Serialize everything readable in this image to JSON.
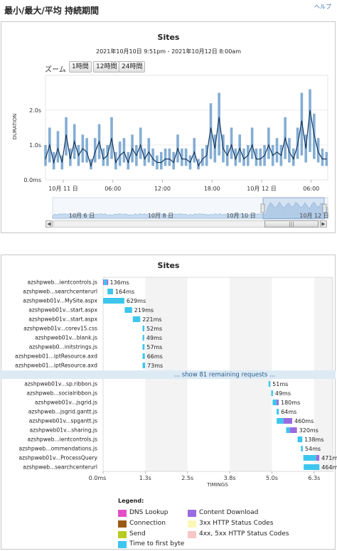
{
  "header": {
    "title": "最小/最大/平均 持続期間",
    "help": "ヘルプ"
  },
  "timeline": {
    "title": "Sites",
    "date_range": "2021年10月10日 9:51pm - 2021年10月12日 8:00am",
    "zoom_label": "ズーム",
    "zoom_buttons": [
      "1時間",
      "12時間",
      "24時間"
    ],
    "y_axis_label": "DURATION",
    "navigator_labels": [
      "10月 6 日",
      "10月 8 日",
      "10月 10 日",
      "10月 12 日"
    ],
    "scrollbar_grip": "|||",
    "colors": {
      "line": "#16385e",
      "bar": "#6f9fcc",
      "grid": "#e4e4e4"
    },
    "chart_data": {
      "type": "line",
      "ylabel": "DURATION",
      "y_ticks": [
        "0.0ms",
        "1.0s",
        "2.0s"
      ],
      "ylim": [
        0,
        3.0
      ],
      "x_ticks": [
        {
          "t": 2.15,
          "label": "10月 11 日"
        },
        {
          "t": 8.15,
          "label": "06:00"
        },
        {
          "t": 14.15,
          "label": "12:00"
        },
        {
          "t": 20.15,
          "label": "18:00"
        },
        {
          "t": 26.15,
          "label": "10月 12 日"
        },
        {
          "t": 32.15,
          "label": "06:00"
        }
      ],
      "x_range": [
        0,
        34.15
      ],
      "series": [
        {
          "name": "avg",
          "t": [
            0.0,
            0.5,
            1.0,
            1.5,
            2.0,
            2.5,
            3.0,
            3.5,
            4.0,
            4.5,
            5.0,
            5.5,
            6.0,
            6.5,
            7.0,
            7.5,
            8.0,
            8.5,
            9.0,
            9.5,
            10.0,
            10.5,
            11.0,
            11.5,
            12.0,
            12.5,
            13.0,
            13.5,
            14.0,
            14.5,
            15.0,
            15.5,
            16.0,
            16.5,
            17.0,
            17.5,
            18.0,
            18.5,
            19.0,
            19.5,
            20.0,
            20.5,
            21.0,
            21.5,
            22.0,
            22.5,
            23.0,
            23.5,
            24.0,
            24.5,
            25.0,
            25.5,
            26.0,
            26.5,
            27.0,
            27.5,
            28.0,
            28.5,
            29.0,
            29.5,
            30.0,
            30.5,
            31.0,
            31.5,
            32.0,
            32.5,
            33.0,
            33.5,
            34.0
          ],
          "avg": [
            0.6,
            1.0,
            0.5,
            0.9,
            0.5,
            1.3,
            0.6,
            1.1,
            0.7,
            0.9,
            0.8,
            0.4,
            0.8,
            1.1,
            0.6,
            0.7,
            1.2,
            0.5,
            0.7,
            0.8,
            0.5,
            0.9,
            0.7,
            1.0,
            0.6,
            0.8,
            0.6,
            0.5,
            0.5,
            0.6,
            0.6,
            0.5,
            0.9,
            0.6,
            0.6,
            0.5,
            0.8,
            0.4,
            0.6,
            0.7,
            1.5,
            0.9,
            1.8,
            0.9,
            0.7,
            1.0,
            0.6,
            0.9,
            0.6,
            0.7,
            1.0,
            0.6,
            0.6,
            0.7,
            1.0,
            0.7,
            0.8,
            0.7,
            1.2,
            0.8,
            0.6,
            1.0,
            1.7,
            0.9,
            2.0,
            1.3,
            0.8,
            0.6,
            0.6
          ],
          "max": [
            1.0,
            1.5,
            0.8,
            1.4,
            0.7,
            1.8,
            0.9,
            1.6,
            1.0,
            1.3,
            1.2,
            0.6,
            1.2,
            1.6,
            0.9,
            1.0,
            1.8,
            0.8,
            1.1,
            1.2,
            0.8,
            1.3,
            1.0,
            1.5,
            0.9,
            1.2,
            0.9,
            0.7,
            0.8,
            0.9,
            0.9,
            0.8,
            1.3,
            0.9,
            0.9,
            0.7,
            1.2,
            0.6,
            0.9,
            1.0,
            2.2,
            1.3,
            2.5,
            1.3,
            1.0,
            1.5,
            0.9,
            1.3,
            0.9,
            1.0,
            1.5,
            0.9,
            0.9,
            1.0,
            1.5,
            1.0,
            1.2,
            1.0,
            1.8,
            1.2,
            0.9,
            1.5,
            2.5,
            1.3,
            2.6,
            1.9,
            1.2,
            0.9,
            0.8
          ],
          "min": [
            0.4,
            0.5,
            0.3,
            0.5,
            0.3,
            0.7,
            0.4,
            0.6,
            0.4,
            0.5,
            0.5,
            0.3,
            0.5,
            0.6,
            0.4,
            0.4,
            0.6,
            0.3,
            0.4,
            0.5,
            0.3,
            0.5,
            0.4,
            0.6,
            0.4,
            0.5,
            0.4,
            0.3,
            0.3,
            0.4,
            0.4,
            0.3,
            0.5,
            0.4,
            0.4,
            0.3,
            0.5,
            0.3,
            0.4,
            0.4,
            0.6,
            0.5,
            0.7,
            0.5,
            0.4,
            0.6,
            0.4,
            0.5,
            0.4,
            0.4,
            0.6,
            0.4,
            0.4,
            0.4,
            0.6,
            0.4,
            0.5,
            0.4,
            0.6,
            0.5,
            0.4,
            0.6,
            0.7,
            0.5,
            0.8,
            0.6,
            0.5,
            0.4,
            0.4
          ]
        }
      ]
    }
  },
  "waterfall": {
    "title": "Sites",
    "x_axis_label": "TIMINGS",
    "x_ticks": [
      "0.0ms",
      "1.3s",
      "2.5s",
      "3.8s",
      "5.0s",
      "6.3s"
    ],
    "remaining_row": "... show 81 remaining requests ...",
    "colors": {
      "dns": "#e24fc7",
      "connection": "#9a5a16",
      "send": "#b7cc20",
      "ttfb": "#3cc6ee",
      "content": "#9a6be0",
      "status3xx": "#fbf7b6",
      "status4xx": "#f7c6c6",
      "row_band": "#dbe9f3",
      "remaining_band": "#dceaf4"
    },
    "chart_data": {
      "type": "bar",
      "x_unit": "ms",
      "xlim": [
        0,
        6800
      ],
      "rows": [
        {
          "name": "azshpweb...ientcontrols.js",
          "start": 0,
          "segments": [
            {
              "kind": "dns",
              "ms": 20
            },
            {
              "kind": "ttfb",
              "ms": 90
            },
            {
              "kind": "content",
              "ms": 26
            }
          ],
          "label": "136ms"
        },
        {
          "name": "azshpweb...searchcenterurl",
          "start": 130,
          "segments": [
            {
              "kind": "ttfb",
              "ms": 164
            }
          ],
          "label": "164ms"
        },
        {
          "name": "azshpweb01v...MySite.aspx",
          "start": 0,
          "segments": [
            {
              "kind": "ttfb",
              "ms": 629
            }
          ],
          "label": "629ms"
        },
        {
          "name": "azshpweb01v...start.aspx",
          "start": 640,
          "segments": [
            {
              "kind": "ttfb",
              "ms": 219
            }
          ],
          "label": "219ms"
        },
        {
          "name": "azshpweb01v...start.aspx",
          "start": 880,
          "segments": [
            {
              "kind": "ttfb",
              "ms": 221
            }
          ],
          "label": "221ms"
        },
        {
          "name": "azshpweb01v...corev15.css",
          "start": 1170,
          "segments": [
            {
              "kind": "ttfb",
              "ms": 52
            }
          ],
          "label": "52ms"
        },
        {
          "name": "azshpweb01v...blank.js",
          "start": 1170,
          "segments": [
            {
              "kind": "ttfb",
              "ms": 49
            }
          ],
          "label": "49ms"
        },
        {
          "name": "azshpweb0...initstrings.js",
          "start": 1170,
          "segments": [
            {
              "kind": "ttfb",
              "ms": 57
            }
          ],
          "label": "57ms"
        },
        {
          "name": "azshpweb01...iptResource.axd",
          "start": 1170,
          "segments": [
            {
              "kind": "ttfb",
              "ms": 66
            }
          ],
          "label": "66ms"
        },
        {
          "name": "azshpweb01...iptResource.axd",
          "start": 1170,
          "segments": [
            {
              "kind": "ttfb",
              "ms": 73
            }
          ],
          "label": "73ms"
        },
        {
          "remaining": true
        },
        {
          "name": "azshpweb01v...sp.ribbon.js",
          "start": 4900,
          "segments": [
            {
              "kind": "ttfb",
              "ms": 51
            }
          ],
          "label": "51ms"
        },
        {
          "name": "azshpweb...socialribbon.js",
          "start": 4980,
          "segments": [
            {
              "kind": "ttfb",
              "ms": 49
            }
          ],
          "label": "49ms"
        },
        {
          "name": "azshpweb01v...jsgrid.js",
          "start": 5020,
          "segments": [
            {
              "kind": "ttfb",
              "ms": 120
            },
            {
              "kind": "content",
              "ms": 60
            }
          ],
          "label": "180ms"
        },
        {
          "name": "azshpweb...jsgrid.gantt.js",
          "start": 5140,
          "segments": [
            {
              "kind": "ttfb",
              "ms": 64
            }
          ],
          "label": "64ms"
        },
        {
          "name": "azshpweb01v...spgantt.js",
          "start": 5140,
          "segments": [
            {
              "kind": "ttfb",
              "ms": 200
            },
            {
              "kind": "content",
              "ms": 260
            }
          ],
          "label": "460ms"
        },
        {
          "name": "azshpweb01v...sharing.js",
          "start": 5420,
          "segments": [
            {
              "kind": "ttfb",
              "ms": 110
            },
            {
              "kind": "content",
              "ms": 210
            }
          ],
          "label": "320ms"
        },
        {
          "name": "azshpweb...ientcontrols.js",
          "start": 5760,
          "segments": [
            {
              "kind": "ttfb",
              "ms": 138
            }
          ],
          "label": "138ms"
        },
        {
          "name": "azshpweb...ommendations.js",
          "start": 5860,
          "segments": [
            {
              "kind": "ttfb",
              "ms": 54
            }
          ],
          "label": "54ms"
        },
        {
          "name": "azshpweb01v...ProcessQuery",
          "start": 5930,
          "segments": [
            {
              "kind": "ttfb",
              "ms": 380
            },
            {
              "kind": "content",
              "ms": 91
            }
          ],
          "label": "471ms"
        },
        {
          "name": "azshpweb...searchcenterurl",
          "start": 5940,
          "segments": [
            {
              "kind": "ttfb",
              "ms": 464
            }
          ],
          "label": "464ms"
        }
      ]
    }
  },
  "legend": {
    "title": "Legend:",
    "items": [
      {
        "key": "dns",
        "label": "DNS Lookup"
      },
      {
        "key": "content",
        "label": "Content Download"
      },
      {
        "key": "connection",
        "label": "Connection"
      },
      {
        "key": "status3xx",
        "label": "3xx HTTP Status Codes"
      },
      {
        "key": "send",
        "label": "Send"
      },
      {
        "key": "status4xx",
        "label": "4xx, 5xx HTTP Status Codes"
      },
      {
        "key": "ttfb",
        "label": "Time to first byte"
      }
    ]
  }
}
